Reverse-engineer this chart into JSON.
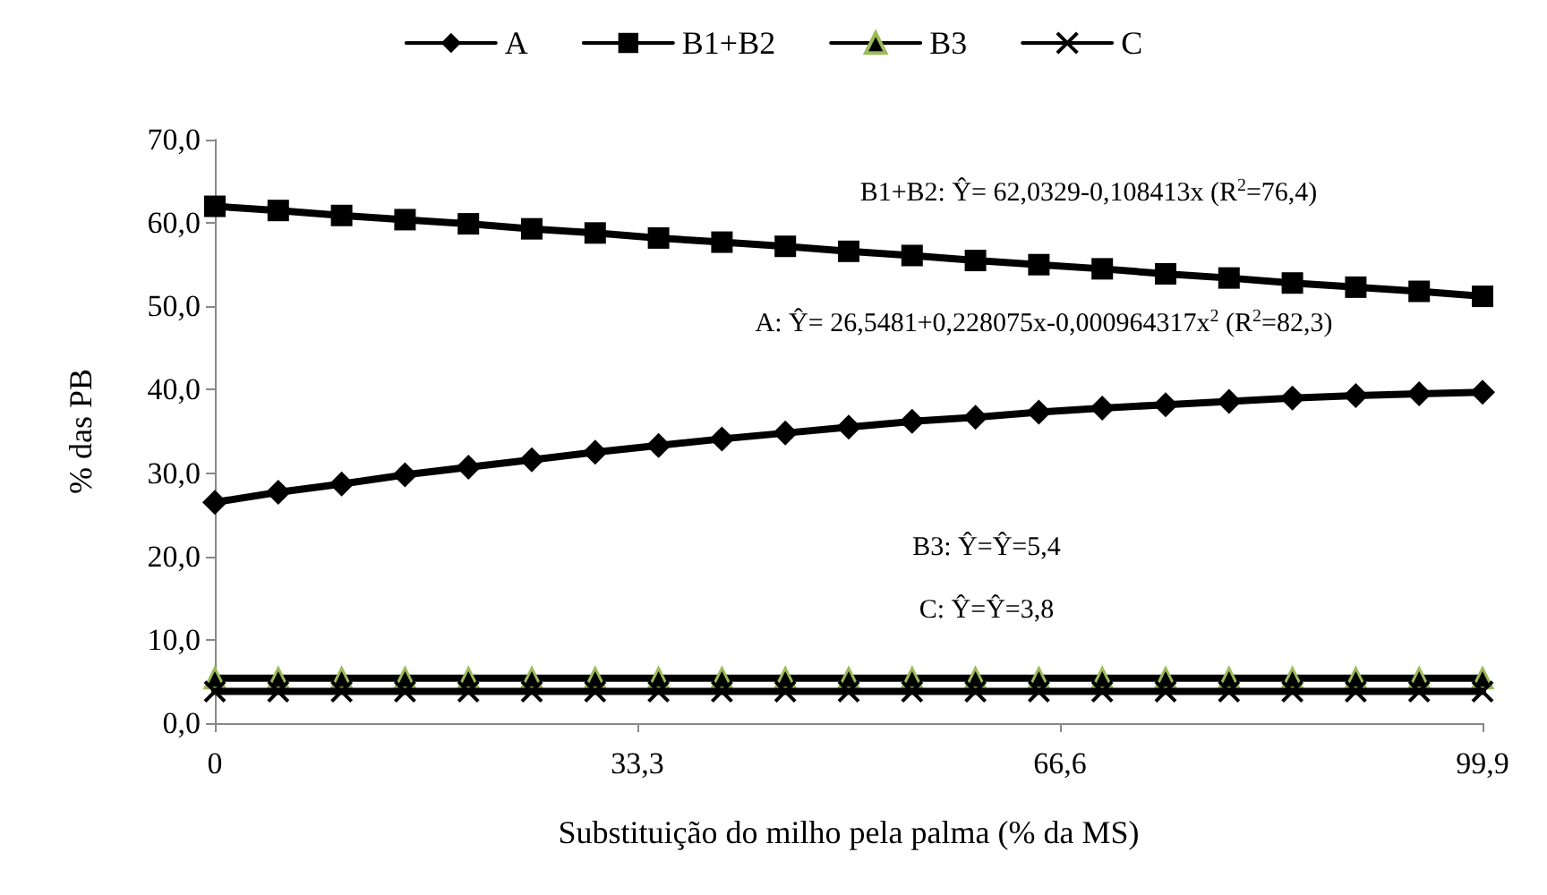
{
  "chart_data": {
    "type": "line",
    "xlabel": "Substituição do milho pela palma (% da MS)",
    "ylabel": "% das PB",
    "x": [
      0,
      4.995,
      9.99,
      14.985,
      19.98,
      24.975,
      29.97,
      34.965,
      39.96,
      44.955,
      49.95,
      54.945,
      59.94,
      64.935,
      69.93,
      74.925,
      79.92,
      84.915,
      89.91,
      94.905,
      99.9
    ],
    "series": [
      {
        "name": "A",
        "color": "#000000",
        "marker": "diamond",
        "values": [
          26.5,
          27.7,
          28.7,
          29.8,
          30.7,
          31.6,
          32.5,
          33.3,
          34.1,
          34.8,
          35.5,
          36.2,
          36.7,
          37.3,
          37.8,
          38.2,
          38.6,
          39.0,
          39.3,
          39.5,
          39.7
        ]
      },
      {
        "name": "B1+B2",
        "color": "#000000",
        "marker": "square",
        "values": [
          62.0,
          61.5,
          60.9,
          60.4,
          59.9,
          59.3,
          58.8,
          58.2,
          57.7,
          57.2,
          56.6,
          56.1,
          55.5,
          55.0,
          54.5,
          53.9,
          53.4,
          52.8,
          52.3,
          51.8,
          51.2
        ]
      },
      {
        "name": "B3",
        "color": "#000000",
        "marker": "triangle",
        "values": [
          5.4,
          5.4,
          5.4,
          5.4,
          5.4,
          5.4,
          5.4,
          5.4,
          5.4,
          5.4,
          5.4,
          5.4,
          5.4,
          5.4,
          5.4,
          5.4,
          5.4,
          5.4,
          5.4,
          5.4,
          5.4
        ]
      },
      {
        "name": "C",
        "color": "#000000",
        "marker": "cross",
        "values": [
          3.8,
          3.8,
          3.8,
          3.8,
          3.8,
          3.8,
          3.8,
          3.8,
          3.8,
          3.8,
          3.8,
          3.8,
          3.8,
          3.8,
          3.8,
          3.8,
          3.8,
          3.8,
          3.8,
          3.8,
          3.8
        ]
      }
    ],
    "xlim": [
      0,
      99.9
    ],
    "xticks": [
      {
        "value": 0,
        "label": "0"
      },
      {
        "value": 33.3,
        "label": "33,3"
      },
      {
        "value": 66.6,
        "label": "66,6"
      },
      {
        "value": 99.9,
        "label": "99,9"
      }
    ],
    "ylim": [
      0,
      70
    ],
    "yticks": [
      {
        "value": 0,
        "label": "0,0"
      },
      {
        "value": 10,
        "label": "10,0"
      },
      {
        "value": 20,
        "label": "20,0"
      },
      {
        "value": 30,
        "label": "30,0"
      },
      {
        "value": 40,
        "label": "40,0"
      },
      {
        "value": 50,
        "label": "50,0"
      },
      {
        "value": 60,
        "label": "60,0"
      },
      {
        "value": 70,
        "label": "70,0"
      }
    ],
    "annotations": [
      "B1+B2: Ŷ= 62,0329-0,108413x (R$^{2}$=76,4)",
      "A: Ŷ= 26,5481+0,228075x-0,000964317x$^{2}$ (R$^{2}$=82,3)",
      "B3: Ŷ=Ŷ=5,4",
      "C: Ŷ=Ŷ=3,8"
    ],
    "legend": "top",
    "grid": false,
    "line_style": "solid"
  }
}
